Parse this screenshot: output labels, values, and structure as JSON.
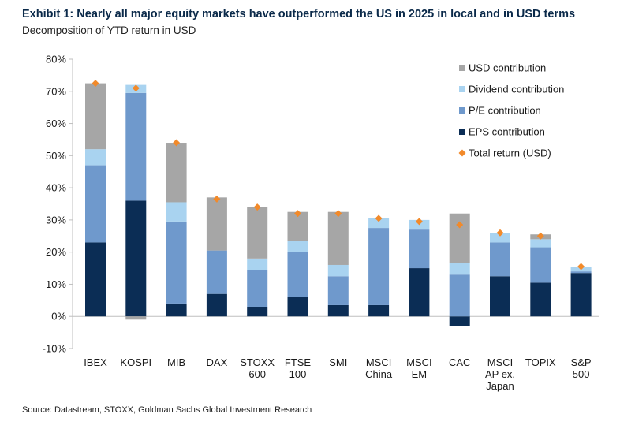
{
  "title": "Exhibit 1: Nearly all major equity markets have outperformed the US in 2025 in local and in USD terms",
  "subtitle": "Decomposition of YTD return in USD",
  "source": "Source: Datastream, STOXX, Goldman Sachs Global Investment Research",
  "colors": {
    "eps": "#0b2d55",
    "pe": "#6f99cc",
    "dividend": "#a9d3f0",
    "usd": "#a6a6a6",
    "total": "#f28a2a",
    "axis": "#bfbfbf"
  },
  "chart_data": {
    "type": "bar",
    "stacked": true,
    "title": "Exhibit 1: Nearly all major equity markets have outperformed the US in 2025 in local and in USD terms",
    "subtitle": "Decomposition of YTD return in USD",
    "xlabel": "",
    "ylabel": "",
    "ylim": [
      -10,
      80
    ],
    "yticks": [
      -10,
      0,
      10,
      20,
      30,
      40,
      50,
      60,
      70,
      80
    ],
    "ytick_labels": [
      "-10%",
      "0%",
      "10%",
      "20%",
      "30%",
      "40%",
      "50%",
      "60%",
      "70%",
      "80%"
    ],
    "grid": false,
    "legend_position": "top-right",
    "categories": [
      [
        "IBEX"
      ],
      [
        "KOSPI"
      ],
      [
        "MIB"
      ],
      [
        "DAX"
      ],
      [
        "STOXX",
        "600"
      ],
      [
        "FTSE",
        "100"
      ],
      [
        "SMI"
      ],
      [
        "MSCI",
        "China"
      ],
      [
        "MSCI",
        "EM"
      ],
      [
        "CAC"
      ],
      [
        "MSCI",
        "AP ex.",
        "Japan"
      ],
      [
        "TOPIX"
      ],
      [
        "S&P",
        "500"
      ]
    ],
    "series": [
      {
        "name": "EPS contribution",
        "key": "eps",
        "values": [
          23,
          36,
          4,
          7,
          3,
          6,
          3.5,
          3.5,
          15,
          -3,
          12.5,
          10.5,
          13.5
        ]
      },
      {
        "name": "P/E contribution",
        "key": "pe",
        "values": [
          24,
          33.5,
          25.5,
          13.5,
          11.5,
          14,
          9,
          24,
          12,
          13,
          10.5,
          11,
          0.5
        ]
      },
      {
        "name": "Dividend contribution",
        "key": "dividend",
        "values": [
          5,
          2.5,
          6,
          0,
          3.5,
          3.5,
          3.5,
          3,
          3,
          3.5,
          3,
          2.5,
          1.5
        ]
      },
      {
        "name": "USD contribution",
        "key": "usd",
        "values": [
          20.5,
          -1,
          18.5,
          16.5,
          16,
          9,
          16.5,
          0,
          0,
          15.5,
          0,
          1.5,
          0
        ]
      }
    ],
    "total_return": {
      "name": "Total return (USD)",
      "values": [
        72.5,
        71,
        54,
        36.5,
        34,
        32,
        32,
        30.5,
        29.5,
        28.5,
        26,
        25,
        15.5
      ]
    },
    "legend": [
      {
        "label": "USD contribution",
        "key": "usd",
        "marker": "square"
      },
      {
        "label": "Dividend contribution",
        "key": "dividend",
        "marker": "square"
      },
      {
        "label": "P/E contribution",
        "key": "pe",
        "marker": "square"
      },
      {
        "label": "EPS contribution",
        "key": "eps",
        "marker": "square"
      },
      {
        "label": "Total return (USD)",
        "key": "total",
        "marker": "diamond"
      }
    ]
  }
}
